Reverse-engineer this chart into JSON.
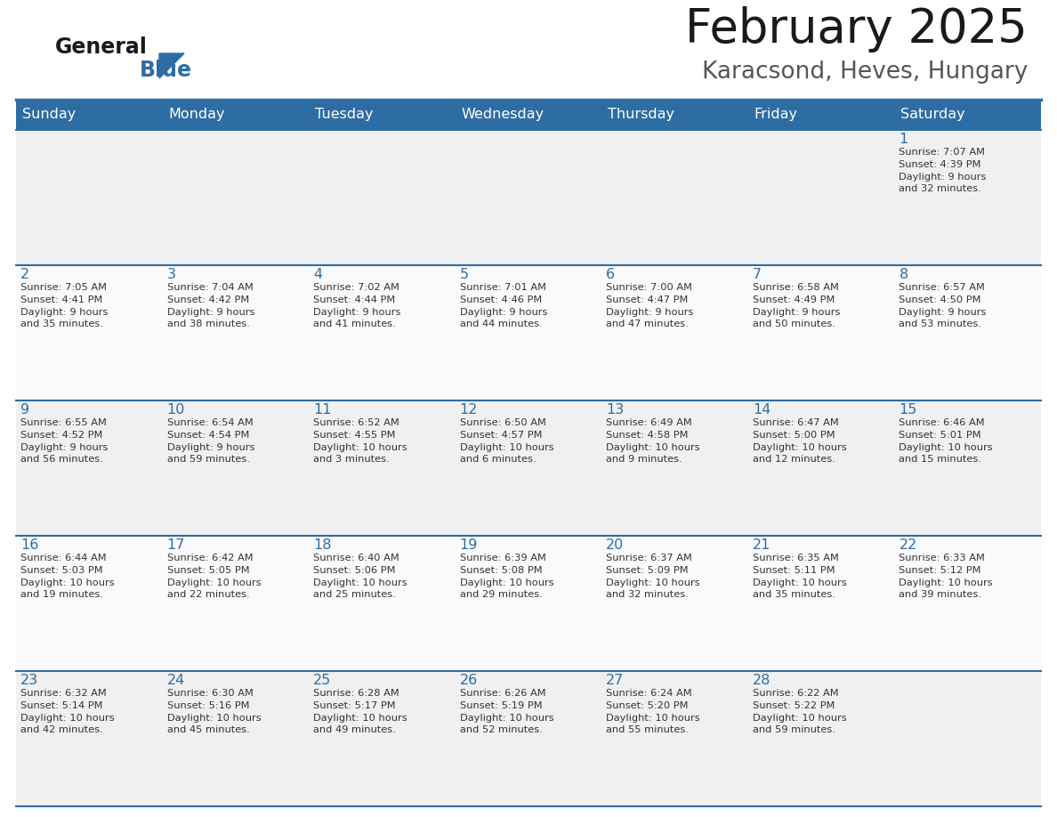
{
  "title": "February 2025",
  "subtitle": "Karacsond, Heves, Hungary",
  "days_of_week": [
    "Sunday",
    "Monday",
    "Tuesday",
    "Wednesday",
    "Thursday",
    "Friday",
    "Saturday"
  ],
  "header_bg": "#2E6DA4",
  "header_text": "#FFFFFF",
  "cell_bg": "#F0F0F0",
  "day_num_color": "#2E6DA4",
  "text_color": "#333333",
  "border_color": "#2E6DA4",
  "logo_general_color": "#1a1a1a",
  "logo_blue_color": "#2E6DA4",
  "title_color": "#1a1a1a",
  "subtitle_color": "#555555",
  "calendar_data": [
    [
      null,
      null,
      null,
      null,
      null,
      null,
      {
        "day": 1,
        "sunrise": "7:07 AM",
        "sunset": "4:39 PM",
        "daylight_h": "9",
        "daylight_m": "32"
      }
    ],
    [
      {
        "day": 2,
        "sunrise": "7:05 AM",
        "sunset": "4:41 PM",
        "daylight_h": "9",
        "daylight_m": "35"
      },
      {
        "day": 3,
        "sunrise": "7:04 AM",
        "sunset": "4:42 PM",
        "daylight_h": "9",
        "daylight_m": "38"
      },
      {
        "day": 4,
        "sunrise": "7:02 AM",
        "sunset": "4:44 PM",
        "daylight_h": "9",
        "daylight_m": "41"
      },
      {
        "day": 5,
        "sunrise": "7:01 AM",
        "sunset": "4:46 PM",
        "daylight_h": "9",
        "daylight_m": "44"
      },
      {
        "day": 6,
        "sunrise": "7:00 AM",
        "sunset": "4:47 PM",
        "daylight_h": "9",
        "daylight_m": "47"
      },
      {
        "day": 7,
        "sunrise": "6:58 AM",
        "sunset": "4:49 PM",
        "daylight_h": "9",
        "daylight_m": "50"
      },
      {
        "day": 8,
        "sunrise": "6:57 AM",
        "sunset": "4:50 PM",
        "daylight_h": "9",
        "daylight_m": "53"
      }
    ],
    [
      {
        "day": 9,
        "sunrise": "6:55 AM",
        "sunset": "4:52 PM",
        "daylight_h": "9",
        "daylight_m": "56"
      },
      {
        "day": 10,
        "sunrise": "6:54 AM",
        "sunset": "4:54 PM",
        "daylight_h": "9",
        "daylight_m": "59"
      },
      {
        "day": 11,
        "sunrise": "6:52 AM",
        "sunset": "4:55 PM",
        "daylight_h": "10",
        "daylight_m": "3"
      },
      {
        "day": 12,
        "sunrise": "6:50 AM",
        "sunset": "4:57 PM",
        "daylight_h": "10",
        "daylight_m": "6"
      },
      {
        "day": 13,
        "sunrise": "6:49 AM",
        "sunset": "4:58 PM",
        "daylight_h": "10",
        "daylight_m": "9"
      },
      {
        "day": 14,
        "sunrise": "6:47 AM",
        "sunset": "5:00 PM",
        "daylight_h": "10",
        "daylight_m": "12"
      },
      {
        "day": 15,
        "sunrise": "6:46 AM",
        "sunset": "5:01 PM",
        "daylight_h": "10",
        "daylight_m": "15"
      }
    ],
    [
      {
        "day": 16,
        "sunrise": "6:44 AM",
        "sunset": "5:03 PM",
        "daylight_h": "10",
        "daylight_m": "19"
      },
      {
        "day": 17,
        "sunrise": "6:42 AM",
        "sunset": "5:05 PM",
        "daylight_h": "10",
        "daylight_m": "22"
      },
      {
        "day": 18,
        "sunrise": "6:40 AM",
        "sunset": "5:06 PM",
        "daylight_h": "10",
        "daylight_m": "25"
      },
      {
        "day": 19,
        "sunrise": "6:39 AM",
        "sunset": "5:08 PM",
        "daylight_h": "10",
        "daylight_m": "29"
      },
      {
        "day": 20,
        "sunrise": "6:37 AM",
        "sunset": "5:09 PM",
        "daylight_h": "10",
        "daylight_m": "32"
      },
      {
        "day": 21,
        "sunrise": "6:35 AM",
        "sunset": "5:11 PM",
        "daylight_h": "10",
        "daylight_m": "35"
      },
      {
        "day": 22,
        "sunrise": "6:33 AM",
        "sunset": "5:12 PM",
        "daylight_h": "10",
        "daylight_m": "39"
      }
    ],
    [
      {
        "day": 23,
        "sunrise": "6:32 AM",
        "sunset": "5:14 PM",
        "daylight_h": "10",
        "daylight_m": "42"
      },
      {
        "day": 24,
        "sunrise": "6:30 AM",
        "sunset": "5:16 PM",
        "daylight_h": "10",
        "daylight_m": "45"
      },
      {
        "day": 25,
        "sunrise": "6:28 AM",
        "sunset": "5:17 PM",
        "daylight_h": "10",
        "daylight_m": "49"
      },
      {
        "day": 26,
        "sunrise": "6:26 AM",
        "sunset": "5:19 PM",
        "daylight_h": "10",
        "daylight_m": "52"
      },
      {
        "day": 27,
        "sunrise": "6:24 AM",
        "sunset": "5:20 PM",
        "daylight_h": "10",
        "daylight_m": "55"
      },
      {
        "day": 28,
        "sunrise": "6:22 AM",
        "sunset": "5:22 PM",
        "daylight_h": "10",
        "daylight_m": "59"
      },
      null
    ]
  ]
}
